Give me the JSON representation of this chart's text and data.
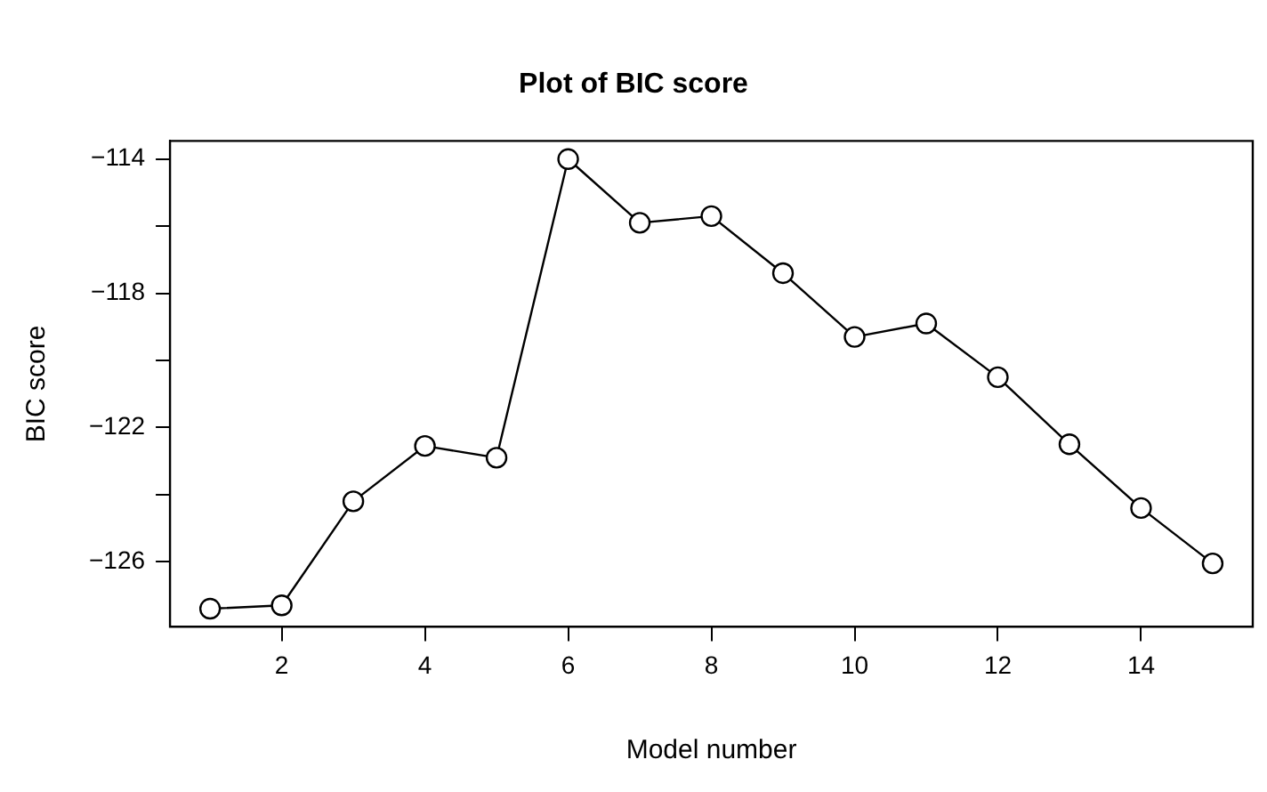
{
  "chart_data": {
    "type": "line",
    "title": "Plot of BIC score",
    "xlabel": "Model number",
    "ylabel": "BIC score",
    "x": [
      1,
      2,
      3,
      4,
      5,
      6,
      7,
      8,
      9,
      10,
      11,
      12,
      13,
      14,
      15
    ],
    "series": [
      {
        "color": "#000000",
        "values": [
          -127.4,
          -127.3,
          -124.2,
          -122.55,
          -122.9,
          -114.0,
          -115.9,
          -115.7,
          -117.4,
          -119.3,
          -118.9,
          -120.5,
          -122.5,
          -124.4,
          -126.05
        ]
      }
    ],
    "xlim": [
      0.44,
      15.56
    ],
    "xticks": [
      2,
      4,
      6,
      8,
      10,
      12,
      14
    ],
    "ylim": [
      -127.94,
      -113.46
    ],
    "yticks": [
      -114,
      {
        "value": -116,
        "label": null
      },
      -118,
      {
        "value": -120,
        "label": null
      },
      -122,
      {
        "value": -124,
        "label": null
      },
      -126
    ],
    "grid": false,
    "legend": false,
    "marker": "circle",
    "line_style": "solid"
  }
}
